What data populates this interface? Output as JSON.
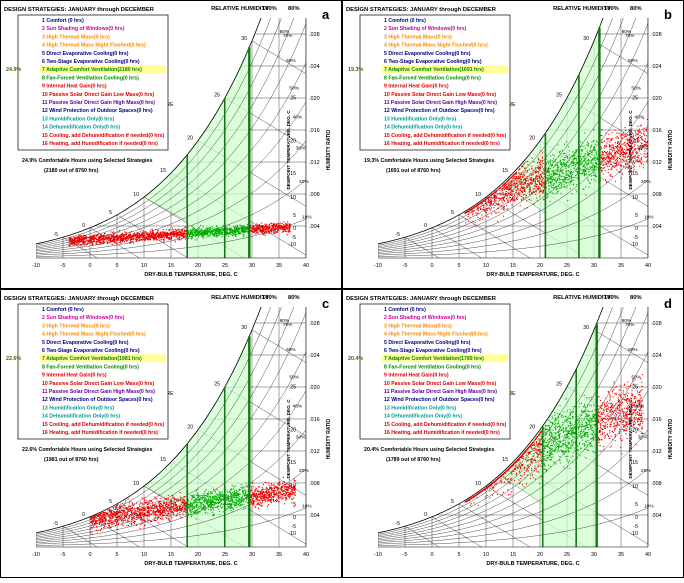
{
  "figure": {
    "header_title": "DESIGN STRATEGIES:  JANUARY through DECEMBER",
    "rh_title": "RELATIVE HUMIDITY",
    "rh_top_labels": [
      "100%",
      "80%"
    ],
    "wb_label": [
      "WET-BULB",
      "TEMPERATURE",
      "DEG. C"
    ],
    "dp_label": "DEWPOINT TEMPERATURE, DEG. C",
    "hr_label": "HUMIDITY RATIO",
    "xlabel": "DRY-BULB TEMPERATURE, DEG. C",
    "x_ticks": [
      "-10",
      "-5",
      "0",
      "5",
      "10",
      "15",
      "20",
      "25",
      "30",
      "35",
      "40"
    ],
    "hr_ticks": [
      ".028",
      ".024",
      ".020",
      ".016",
      ".012",
      ".008",
      ".004"
    ],
    "dp_ticks": [
      "25",
      "20",
      "15",
      "10",
      "5",
      "0",
      "-5",
      "-10"
    ],
    "wb_ticks": [
      "30",
      "25",
      "20",
      "15",
      "10",
      "5",
      "0",
      "-5"
    ],
    "rh_curve_labels": [
      "90%",
      "70%",
      "60%",
      "50%",
      "40%",
      "30%",
      "20%",
      "10%"
    ],
    "colors": {
      "comfort": "#000080",
      "magenta": "#cc0099",
      "orange": "#ff8800",
      "navy": "#000080",
      "green": "#008800",
      "teal": "#009999",
      "red": "#dd0000",
      "purple": "#660099",
      "highlight": "#ffff99",
      "zone": "#ccffcc",
      "grid": "#000000",
      "points_red": "#ee0000",
      "points_green": "#00aa00"
    }
  },
  "chart_data": [
    {
      "panel": "a",
      "type": "scatter",
      "title": "DESIGN STRATEGIES: JANUARY through DECEMBER",
      "xlabel": "DRY-BULB TEMPERATURE, DEG. C",
      "ylabel": "HUMIDITY RATIO",
      "xlim": [
        -10,
        40
      ],
      "ylim": [
        0,
        0.03
      ],
      "highlight_pct": "24.9%",
      "strategies": [
        "1 Comfort (0 hrs)",
        "2 Sun Shading of Windows(0 hrs)",
        "3 High Thermal Mass(0 hrs)",
        "4 High Thermal Mass Night Flushed(0 hrs)",
        "5 Direct Evaporative Cooling(0 hrs)",
        "6 Two-Stage Evaporative Cooling(0 hrs)",
        "7 Adaptive Comfort Ventilation(2180 hrs)",
        "8 Fan-Forced Ventilation Cooling(0 hrs)",
        "9 Internal Heat Gain(0 hrs)",
        "10 Passive Solar Direct Gain Low Mass(0 hrs)",
        "11 Passive Solar Direct Gain High Mass(0 hrs)",
        "12 Wind Protection of Outdoor Spaces(0 hrs)",
        "13 Humidification Only(0 hrs)",
        "14 Dehumidification Only(0 hrs)",
        "15 Cooling, add Dehumidification if needed(0 hrs)",
        "16 Heating, add Humidification if needed(0 hrs)"
      ],
      "summary": [
        "24.9% Comfortable Hours using Selected Strategies",
        "(2180 out of 8760 hrs)"
      ],
      "zone_tmin": 18,
      "zone_tmax": 29.5,
      "cloud": {
        "tmin": -4,
        "tmax": 37,
        "hr_min": 0.0015,
        "hr_max": 0.0045,
        "seed": 11
      }
    },
    {
      "panel": "b",
      "type": "scatter",
      "title": "DESIGN STRATEGIES: JANUARY through DECEMBER",
      "xlabel": "DRY-BULB TEMPERATURE, DEG. C",
      "ylabel": "HUMIDITY RATIO",
      "xlim": [
        -10,
        40
      ],
      "ylim": [
        0,
        0.03
      ],
      "highlight_pct": "19.3%",
      "strategies": [
        "1 Comfort (0 hrs)",
        "2 Sun Shading of Windows(0 hrs)",
        "3 High Thermal Mass(0 hrs)",
        "4 High Thermal Mass Night Flushed(0 hrs)",
        "5 Direct Evaporative Cooling(0 hrs)",
        "6 Two-Stage Evaporative Cooling(0 hrs)",
        "7 Adaptive Comfort Ventilation(1691 hrs)",
        "8 Fan-Forced Ventilation Cooling(0 hrs)",
        "9 Internal Heat Gain(0 hrs)",
        "10 Passive Solar Direct Gain Low Mass(0 hrs)",
        "11 Passive Solar Direct Gain High Mass(0 hrs)",
        "12 Wind Protection of Outdoor Spaces(0 hrs)",
        "13 Humidification Only(0 hrs)",
        "14 Dehumidification Only(0 hrs)",
        "15 Cooling, add Dehumidification if needed(0 hrs)",
        "16 Heating, add Humidification if needed(0 hrs)"
      ],
      "summary": [
        "19.3% Comfortable Hours using Selected Strategies",
        "(1691 out of 8760 hrs)"
      ],
      "zone_tmin": 21,
      "zone_tmax": 31,
      "cloud": {
        "tmin": 6,
        "tmax": 40,
        "hr_min": 0.004,
        "hr_max": 0.017,
        "seed": 23
      }
    },
    {
      "panel": "c",
      "type": "scatter",
      "title": "DESIGN STRATEGIES: JANUARY through DECEMBER",
      "xlabel": "DRY-BULB TEMPERATURE, DEG. C",
      "ylabel": "HUMIDITY RATIO",
      "xlim": [
        -10,
        40
      ],
      "ylim": [
        0,
        0.03
      ],
      "highlight_pct": "22.6%",
      "strategies": [
        "1 Comfort (0 hrs)",
        "2 Sun Shading of Windows(0 hrs)",
        "3 High Thermal Mass(0 hrs)",
        "4 High Thermal Mass Night Flushed(0 hrs)",
        "5 Direct Evaporative Cooling(0 hrs)",
        "6 Two-Stage Evaporative Cooling(0 hrs)",
        "7 Adaptive Comfort Ventilation(1981 hrs)",
        "8 Fan-Forced Ventilation Cooling(0 hrs)",
        "9 Internal Heat Gain(0 hrs)",
        "10 Passive Solar Direct Gain Low Mass(0 hrs)",
        "11 Passive Solar Direct Gain High Mass(0 hrs)",
        "12 Wind Protection of Outdoor Spaces(0 hrs)",
        "13 Humidification Only(0 hrs)",
        "14 Dehumidification Only(0 hrs)",
        "15 Cooling, add Dehumidification if needed(0 hrs)",
        "16 Heating, add Humidification if needed(0 hrs)"
      ],
      "summary": [
        "22.6% Comfortable Hours using Selected Strategies",
        "(1981 out of 8760 hrs)"
      ],
      "zone_tmin": 18,
      "zone_tmax": 29.5,
      "cloud": {
        "tmin": 0,
        "tmax": 38,
        "hr_min": 0.002,
        "hr_max": 0.0085,
        "seed": 37
      }
    },
    {
      "panel": "d",
      "type": "scatter",
      "title": "DESIGN STRATEGIES: JANUARY through DECEMBER",
      "xlabel": "DRY-BULB TEMPERATURE, DEG. C",
      "ylabel": "HUMIDITY RATIO",
      "xlim": [
        -10,
        40
      ],
      "ylim": [
        0,
        0.03
      ],
      "highlight_pct": "20.4%",
      "strategies": [
        "1 Comfort (0 hrs)",
        "2 Sun Shading of Windows(0 hrs)",
        "3 High Thermal Mass(0 hrs)",
        "4 High Thermal Mass Night Flushed(0 hrs)",
        "5 Direct Evaporative Cooling(0 hrs)",
        "6 Two-Stage Evaporative Cooling(0 hrs)",
        "7 Adaptive Comfort Ventilation(1789 hrs)",
        "8 Fan-Forced Ventilation Cooling(0 hrs)",
        "9 Internal Heat Gain(0 hrs)",
        "10 Passive Solar Direct Gain Low Mass(0 hrs)",
        "11 Passive Solar Direct Gain High Mass(0 hrs)",
        "12 Wind Protection of Outdoor Spaces(0 hrs)",
        "13 Humidification Only(0 hrs)",
        "14 Dehumidification Only(0 hrs)",
        "15 Cooling, add Dehumidification if needed(0 hrs)",
        "16 Heating, add Humidification if needed(0 hrs)"
      ],
      "summary": [
        "20.4% Comfortable Hours using Selected Strategies",
        "(1789 out of 8760 hrs)"
      ],
      "zone_tmin": 20.5,
      "zone_tmax": 30.5,
      "cloud": {
        "tmin": 6,
        "tmax": 39,
        "hr_min": 0.005,
        "hr_max": 0.021,
        "seed": 51
      }
    }
  ]
}
